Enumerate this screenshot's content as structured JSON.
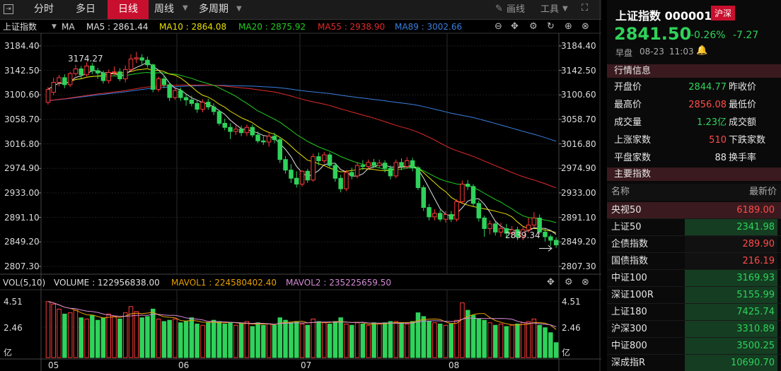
{
  "toolbar": {
    "tabs": [
      "分时",
      "多日",
      "日线",
      "周线",
      "多周期"
    ],
    "draw_label": "画线",
    "tools_label": "工具"
  },
  "indicators": {
    "name": "上证指数",
    "ma": "MA",
    "ma5": "MA5 : 2861.44",
    "ma10": "MA10 : 2864.08",
    "ma20": "MA20 : 2875.92",
    "ma55": "MA55 : 2938.90",
    "ma89": "MA89 : 3002.66"
  },
  "colors": {
    "up": "#ff3b3b",
    "down": "#2fd25a",
    "ma5": "#e0e0e0",
    "ma10": "#e8e000",
    "ma20": "#22cc22",
    "ma55": "#e02a2a",
    "ma89": "#3a7fe0",
    "accent": "#c8102e"
  },
  "price_axis": [
    "3184.40",
    "3142.50",
    "3100.60",
    "3058.70",
    "3016.80",
    "2974.90",
    "2933.00",
    "2891.10",
    "2849.20",
    "2807.30"
  ],
  "annotations": {
    "high": "3174.27",
    "low": "2839.34"
  },
  "volume": {
    "title": "VOL(5,10)",
    "volume": "VOLUME : 122956838.00",
    "mavol1": "MAVOL1 : 224580402.40",
    "mavol2": "MAVOL2 : 235225659.50",
    "axis_top": "4.51",
    "axis_mid": "2.46",
    "axis_unit": "亿"
  },
  "months": [
    "05",
    "06",
    "07",
    "08"
  ],
  "chart_data": {
    "type": "candlestick",
    "price_ylim": [
      2800,
      3200
    ],
    "high_mark": 3174.27,
    "low_mark": 2839.34,
    "candles": [
      [
        3088,
        3110,
        3114,
        3084
      ],
      [
        3105,
        3122,
        3130,
        3100
      ],
      [
        3122,
        3130,
        3135,
        3115
      ],
      [
        3130,
        3118,
        3136,
        3112
      ],
      [
        3118,
        3137,
        3140,
        3114
      ],
      [
        3137,
        3145,
        3152,
        3133
      ],
      [
        3145,
        3135,
        3150,
        3129
      ],
      [
        3135,
        3150,
        3156,
        3132
      ],
      [
        3150,
        3142,
        3155,
        3136
      ],
      [
        3142,
        3138,
        3147,
        3128
      ],
      [
        3138,
        3125,
        3142,
        3120
      ],
      [
        3125,
        3139,
        3144,
        3120
      ],
      [
        3139,
        3140,
        3149,
        3134
      ],
      [
        3140,
        3128,
        3146,
        3124
      ],
      [
        3128,
        3144,
        3151,
        3122
      ],
      [
        3144,
        3162,
        3170,
        3140
      ],
      [
        3162,
        3164,
        3174,
        3155
      ],
      [
        3164,
        3160,
        3170,
        3152
      ],
      [
        3160,
        3152,
        3166,
        3147
      ],
      [
        3152,
        3110,
        3154,
        3105
      ],
      [
        3110,
        3128,
        3132,
        3106
      ],
      [
        3128,
        3118,
        3134,
        3112
      ],
      [
        3118,
        3096,
        3122,
        3090
      ],
      [
        3096,
        3108,
        3112,
        3092
      ],
      [
        3108,
        3096,
        3113,
        3090
      ],
      [
        3096,
        3092,
        3102,
        3082
      ],
      [
        3092,
        3086,
        3099,
        3081
      ],
      [
        3086,
        3076,
        3092,
        3070
      ],
      [
        3076,
        3088,
        3093,
        3071
      ],
      [
        3088,
        3080,
        3094,
        3075
      ],
      [
        3080,
        3072,
        3086,
        3066
      ],
      [
        3072,
        3052,
        3075,
        3048
      ],
      [
        3052,
        3045,
        3060,
        3040
      ],
      [
        3045,
        3038,
        3052,
        3025
      ],
      [
        3038,
        3042,
        3048,
        3032
      ],
      [
        3042,
        3036,
        3048,
        3030
      ],
      [
        3036,
        3045,
        3050,
        3030
      ],
      [
        3045,
        3032,
        3050,
        3028
      ],
      [
        3032,
        3022,
        3038,
        3018
      ],
      [
        3022,
        3020,
        3030,
        3015
      ],
      [
        3020,
        3030,
        3035,
        3012
      ],
      [
        3030,
        3024,
        3036,
        3018
      ],
      [
        3024,
        2990,
        3028,
        2984
      ],
      [
        2990,
        2972,
        2996,
        2966
      ],
      [
        2972,
        2958,
        2982,
        2950
      ],
      [
        2958,
        2948,
        2970,
        2942
      ],
      [
        2948,
        2970,
        2972,
        2944
      ],
      [
        2970,
        2955,
        2974,
        2950
      ],
      [
        2955,
        2995,
        3000,
        2952
      ],
      [
        2995,
        2988,
        3002,
        2980
      ],
      [
        2988,
        2998,
        3003,
        2984
      ],
      [
        2998,
        2980,
        3002,
        2975
      ],
      [
        2980,
        2958,
        2984,
        2952
      ],
      [
        2958,
        2940,
        2964,
        2934
      ],
      [
        2940,
        2968,
        2972,
        2936
      ],
      [
        2968,
        2962,
        2976,
        2956
      ],
      [
        2962,
        2980,
        2986,
        2958
      ],
      [
        2980,
        2978,
        2989,
        2972
      ],
      [
        2978,
        2985,
        2990,
        2974
      ],
      [
        2985,
        2980,
        2991,
        2976
      ],
      [
        2980,
        2984,
        2990,
        2976
      ],
      [
        2984,
        2975,
        2989,
        2968
      ],
      [
        2975,
        2962,
        2980,
        2956
      ],
      [
        2962,
        2985,
        2990,
        2958
      ],
      [
        2985,
        2978,
        2992,
        2972
      ],
      [
        2978,
        2988,
        2994,
        2974
      ],
      [
        2988,
        2976,
        2993,
        2970
      ],
      [
        2976,
        2942,
        2979,
        2938
      ],
      [
        2942,
        2908,
        2946,
        2902
      ],
      [
        2908,
        2892,
        2914,
        2886
      ],
      [
        2892,
        2898,
        2905,
        2886
      ],
      [
        2898,
        2888,
        2904,
        2884
      ],
      [
        2888,
        2896,
        2902,
        2882
      ],
      [
        2896,
        2888,
        2902,
        2883
      ],
      [
        2888,
        2918,
        2922,
        2884
      ],
      [
        2918,
        2948,
        2954,
        2914
      ],
      [
        2948,
        2944,
        2955,
        2938
      ],
      [
        2944,
        2915,
        2948,
        2910
      ],
      [
        2915,
        2890,
        2920,
        2884
      ],
      [
        2890,
        2872,
        2894,
        2858
      ],
      [
        2872,
        2880,
        2886,
        2862
      ],
      [
        2880,
        2866,
        2884,
        2860
      ],
      [
        2866,
        2872,
        2882,
        2858
      ],
      [
        2872,
        2864,
        2880,
        2856
      ],
      [
        2864,
        2870,
        2876,
        2856
      ],
      [
        2870,
        2858,
        2875,
        2852
      ],
      [
        2858,
        2870,
        2876,
        2852
      ],
      [
        2870,
        2878,
        2890,
        2865
      ],
      [
        2878,
        2890,
        2900,
        2874
      ],
      [
        2890,
        2866,
        2896,
        2862
      ],
      [
        2866,
        2858,
        2872,
        2850
      ],
      [
        2858,
        2852,
        2862,
        2842
      ],
      [
        2852,
        2844,
        2857,
        2839
      ]
    ],
    "volume_ylim": [
      0,
      5
    ],
    "volumes": [
      4.5,
      4.3,
      3.9,
      3.5,
      3.6,
      3.8,
      3.2,
      3.1,
      3.4,
      3.0,
      3.2,
      3.5,
      3.3,
      3.1,
      3.6,
      4.1,
      3.7,
      3.2,
      3.3,
      3.9,
      3.1,
      2.9,
      3.0,
      3.1,
      2.8,
      2.9,
      3.2,
      2.7,
      2.6,
      2.8,
      3.0,
      2.9,
      2.7,
      2.8,
      2.6,
      2.7,
      2.9,
      2.5,
      2.8,
      2.6,
      2.7,
      2.6,
      3.2,
      3.0,
      2.8,
      2.9,
      2.7,
      2.6,
      3.1,
      2.9,
      2.8,
      2.7,
      2.9,
      3.2,
      2.7,
      2.6,
      2.8,
      2.7,
      2.6,
      2.8,
      2.7,
      2.8,
      2.9,
      2.9,
      2.8,
      2.7,
      2.9,
      3.6,
      3.3,
      2.9,
      2.8,
      2.7,
      2.6,
      2.7,
      3.0,
      4.4,
      3.8,
      3.4,
      3.1,
      3.0,
      2.8,
      2.6,
      2.7,
      2.5,
      2.6,
      2.7,
      2.8,
      2.9,
      3.1,
      2.6,
      2.4,
      2.0,
      1.2
    ]
  },
  "right_panel": {
    "title": "上证指数 000001",
    "badge": "沪深",
    "price": "2841.50",
    "change_pct": "-0.26%",
    "change": "-7.27",
    "session": "早盘",
    "date": "08-23",
    "time": "11:03",
    "quote_header": "行情信息",
    "quotes": [
      {
        "k": "开盘价",
        "v": "2844.77",
        "k2": "昨收价",
        "c": "down"
      },
      {
        "k": "最高价",
        "v": "2856.08",
        "k2": "最低价",
        "c": "up"
      },
      {
        "k": "成交量",
        "v": "1.23亿",
        "k2": "成交额",
        "c": "down"
      },
      {
        "k": "上涨家数",
        "v": "510",
        "k2": "下跌家数",
        "c": "up"
      },
      {
        "k": "平盘家数",
        "v": "88",
        "k2": "换手率",
        "c": "neutral"
      }
    ],
    "index_header": "主要指数",
    "col_name": "名称",
    "col_price": "最新价",
    "indices": [
      {
        "n": "央视50",
        "p": "6189.00",
        "c": "up2"
      },
      {
        "n": "上证50",
        "p": "2341.98",
        "c": "dn"
      },
      {
        "n": "企债指数",
        "p": "289.90",
        "c": "up"
      },
      {
        "n": "国债指数",
        "p": "216.19",
        "c": "up"
      },
      {
        "n": "中证100",
        "p": "3169.93",
        "c": "dn"
      },
      {
        "n": "深证100R",
        "p": "5155.99",
        "c": "dn"
      },
      {
        "n": "上证180",
        "p": "7425.74",
        "c": "dn"
      },
      {
        "n": "沪深300",
        "p": "3310.89",
        "c": "dn"
      },
      {
        "n": "中证800",
        "p": "3500.25",
        "c": "dn"
      },
      {
        "n": "深成指R",
        "p": "10690.70",
        "c": "dn"
      }
    ]
  }
}
